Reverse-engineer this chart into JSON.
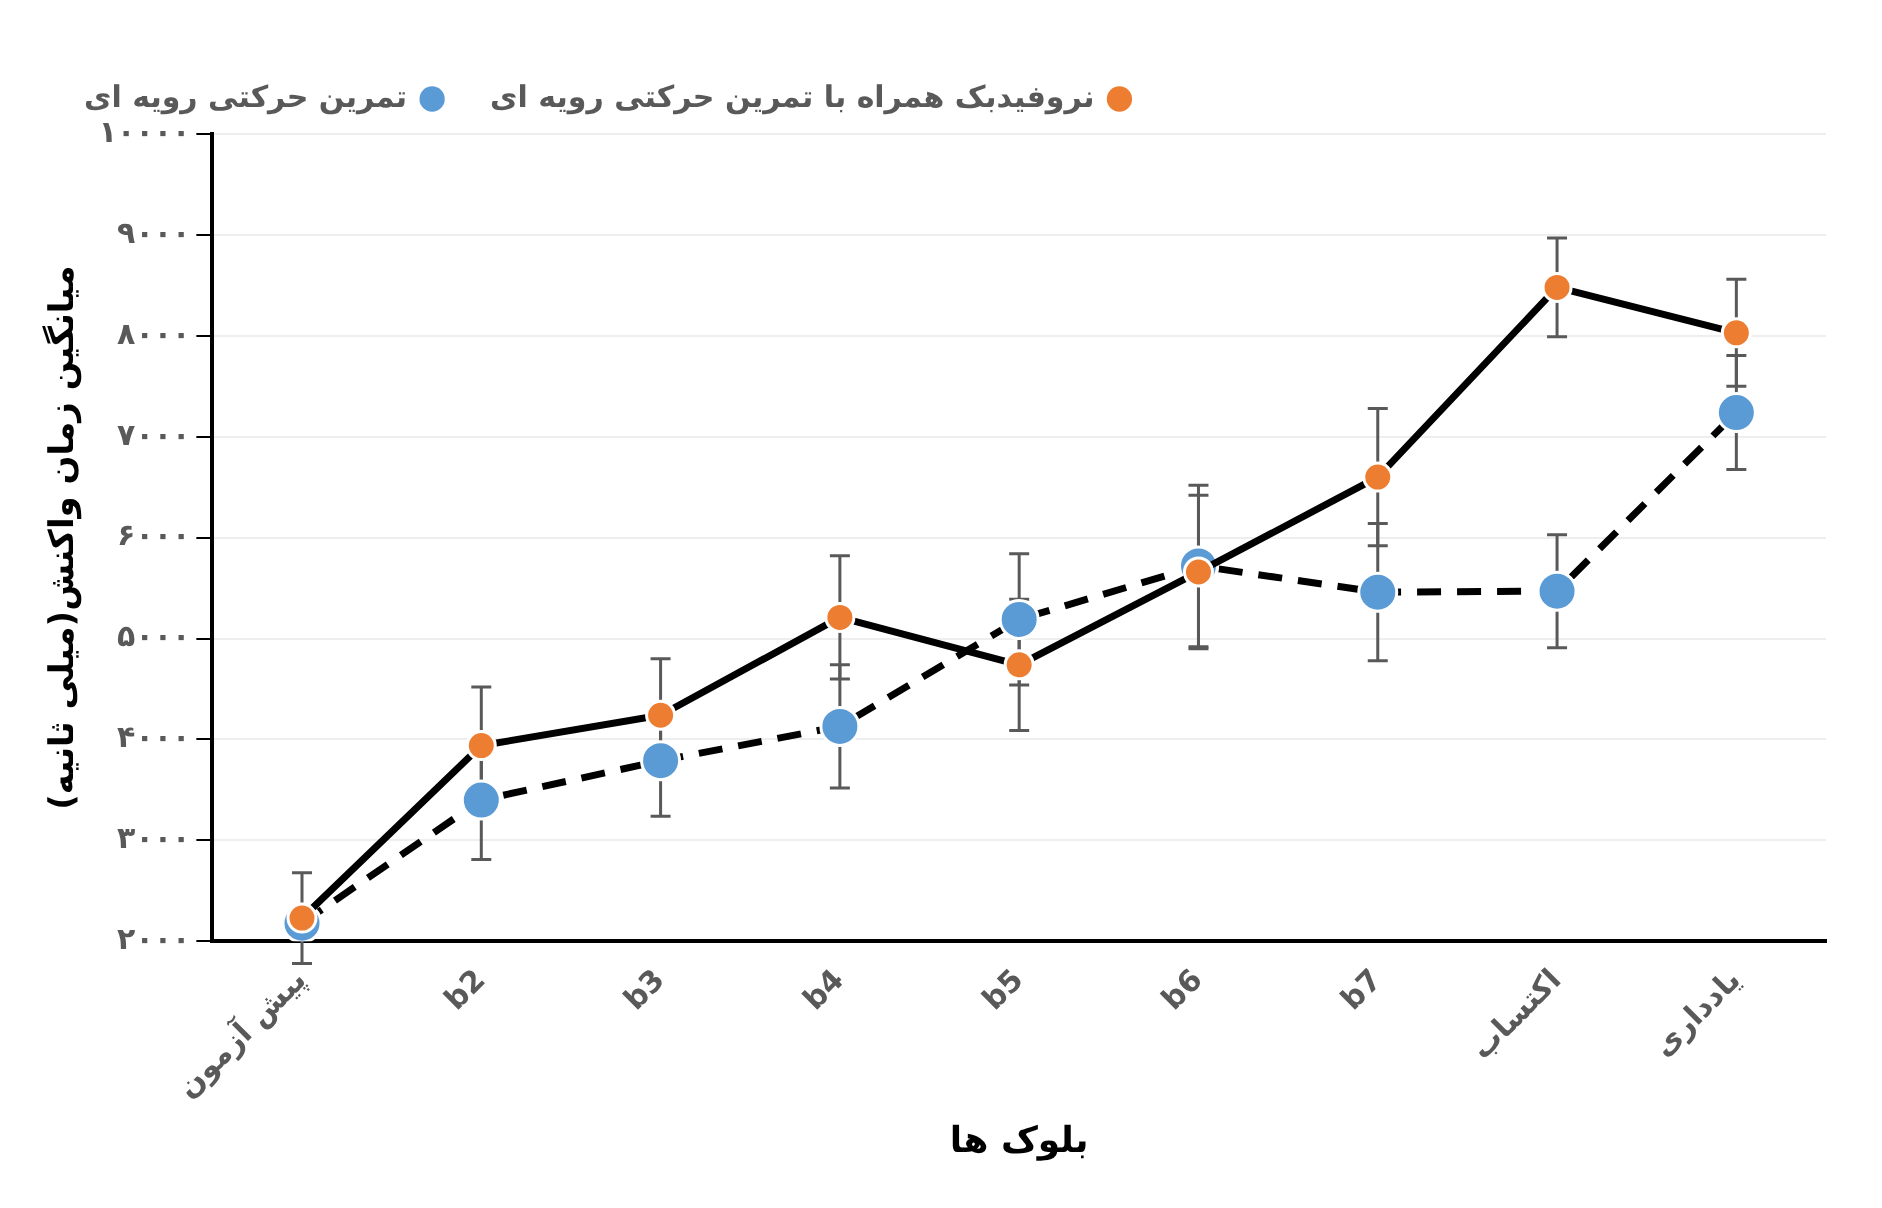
{
  "chart_data": {
    "type": "line",
    "xlabel": "بلوک ها",
    "ylabel": "میانگین زمان واکنش(میلی ثانیه)",
    "categories": [
      "پیش آزمون",
      "b2",
      "b3",
      "b4",
      "b5",
      "b6",
      "b7",
      "اکتساب",
      "یادداری"
    ],
    "series": [
      {
        "name": "نروفیدبک همراه با تمرین حرکتی رویه ای",
        "color": "#ed7d31",
        "line_style": "solid",
        "values": [
          2230,
          3940,
          4240,
          5210,
          4740,
          5660,
          6600,
          8480,
          8030
        ],
        "errors": [
          450,
          580,
          560,
          610,
          650,
          760,
          680,
          490,
          530
        ]
      },
      {
        "name": "تمرین حرکتی رویه ای",
        "color": "#5b9bd5",
        "line_style": "dashed",
        "values": [
          2180,
          3400,
          3790,
          4130,
          5190,
          5720,
          5460,
          5470,
          7240
        ],
        "errors": [
          null,
          590,
          550,
          610,
          650,
          800,
          680,
          560,
          565
        ]
      }
    ],
    "ylim": [
      2000,
      10000
    ],
    "yticks": [
      {
        "value": 2000,
        "label": "۲۰۰۰"
      },
      {
        "value": 3000,
        "label": "۳۰۰۰"
      },
      {
        "value": 4000,
        "label": "۴۰۰۰"
      },
      {
        "value": 5000,
        "label": "۵۰۰۰"
      },
      {
        "value": 6000,
        "label": "۶۰۰۰"
      },
      {
        "value": 7000,
        "label": "۷۰۰۰"
      },
      {
        "value": 8000,
        "label": "۸۰۰۰"
      },
      {
        "value": 9000,
        "label": "۹۰۰۰"
      },
      {
        "value": 10000,
        "label": "۱۰۰۰۰"
      }
    ],
    "grid": "y",
    "legend": "top",
    "marker": "circle"
  }
}
